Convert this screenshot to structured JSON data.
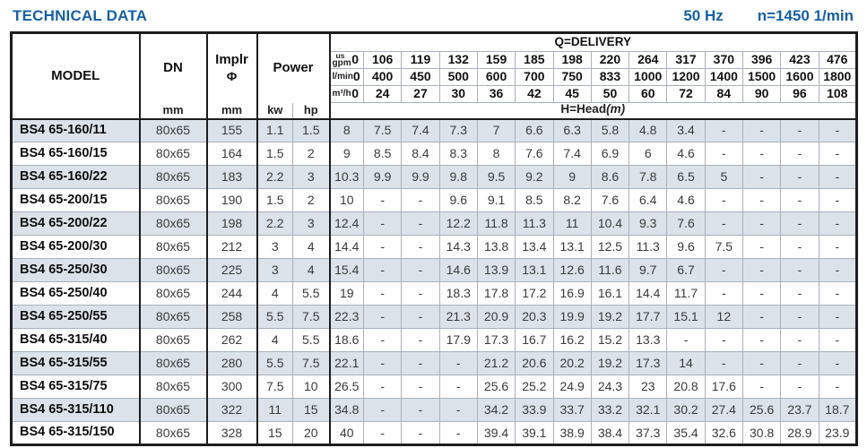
{
  "topbar": {
    "title": "TECHNICAL DATA",
    "frequency": "50 Hz",
    "speed": "n=1450 1/min"
  },
  "colors": {
    "accent_blue": "#1560a7",
    "row_shade": "#dbe2e9",
    "border_dark": "#1d1d1d",
    "border_light": "#a8b0ba"
  },
  "table": {
    "headers": {
      "model": "MODEL",
      "dn": "DN",
      "implr_line1": "Implr",
      "implr_line2": "Φ",
      "power": "Power",
      "mm_dn": "mm",
      "mm_implr": "mm",
      "kw": "kw",
      "hp": "hp",
      "delivery_title": "Q=DELIVERY",
      "head_title": "H=Head",
      "head_unit": "(m)",
      "unit_rows": [
        {
          "label_top": "us",
          "label": "gpm",
          "values": [
            "0",
            "106",
            "119",
            "132",
            "159",
            "185",
            "198",
            "220",
            "264",
            "317",
            "370",
            "396",
            "423",
            "476"
          ]
        },
        {
          "label": "l/min",
          "values": [
            "0",
            "400",
            "450",
            "500",
            "600",
            "700",
            "750",
            "833",
            "1000",
            "1200",
            "1400",
            "1500",
            "1600",
            "1800"
          ]
        },
        {
          "label": "m³/h",
          "values": [
            "0",
            "24",
            "27",
            "30",
            "36",
            "42",
            "45",
            "50",
            "60",
            "72",
            "84",
            "90",
            "96",
            "108"
          ]
        }
      ]
    },
    "rows": [
      {
        "model": "BS4 65-160/11",
        "dn": "80x65",
        "implr": "155",
        "kw": "1.1",
        "hp": "1.5",
        "heads": [
          "8",
          "7.5",
          "7.4",
          "7.3",
          "7",
          "6.6",
          "6.3",
          "5.8",
          "4.8",
          "3.4",
          "-",
          "-",
          "-",
          "-"
        ]
      },
      {
        "model": "BS4 65-160/15",
        "dn": "80x65",
        "implr": "164",
        "kw": "1.5",
        "hp": "2",
        "heads": [
          "9",
          "8.5",
          "8.4",
          "8.3",
          "8",
          "7.6",
          "7.4",
          "6.9",
          "6",
          "4.6",
          "-",
          "-",
          "-",
          "-"
        ]
      },
      {
        "model": "BS4 65-160/22",
        "dn": "80x65",
        "implr": "183",
        "kw": "2.2",
        "hp": "3",
        "heads": [
          "10.3",
          "9.9",
          "9.9",
          "9.8",
          "9.5",
          "9.2",
          "9",
          "8.6",
          "7.8",
          "6.5",
          "5",
          "-",
          "-",
          "-"
        ]
      },
      {
        "model": "BS4 65-200/15",
        "dn": "80x65",
        "implr": "190",
        "kw": "1.5",
        "hp": "2",
        "heads": [
          "10",
          "-",
          "-",
          "9.6",
          "9.1",
          "8.5",
          "8.2",
          "7.6",
          "6.4",
          "4.6",
          "-",
          "-",
          "-",
          "-"
        ]
      },
      {
        "model": "BS4 65-200/22",
        "dn": "80x65",
        "implr": "198",
        "kw": "2.2",
        "hp": "3",
        "heads": [
          "12.4",
          "-",
          "-",
          "12.2",
          "11.8",
          "11.3",
          "11",
          "10.4",
          "9.3",
          "7.6",
          "-",
          "-",
          "-",
          "-"
        ]
      },
      {
        "model": "BS4 65-200/30",
        "dn": "80x65",
        "implr": "212",
        "kw": "3",
        "hp": "4",
        "heads": [
          "14.4",
          "-",
          "-",
          "14.3",
          "13.8",
          "13.4",
          "13.1",
          "12.5",
          "11.3",
          "9.6",
          "7.5",
          "-",
          "-",
          "-"
        ]
      },
      {
        "model": "BS4 65-250/30",
        "dn": "80x65",
        "implr": "225",
        "kw": "3",
        "hp": "4",
        "heads": [
          "15.4",
          "-",
          "-",
          "14.6",
          "13.9",
          "13.1",
          "12.6",
          "11.6",
          "9.7",
          "6.7",
          "-",
          "-",
          "-",
          "-"
        ]
      },
      {
        "model": "BS4 65-250/40",
        "dn": "80x65",
        "implr": "244",
        "kw": "4",
        "hp": "5.5",
        "heads": [
          "19",
          "-",
          "-",
          "18.3",
          "17.8",
          "17.2",
          "16.9",
          "16.1",
          "14.4",
          "11.7",
          "-",
          "-",
          "-",
          "-"
        ]
      },
      {
        "model": "BS4 65-250/55",
        "dn": "80x65",
        "implr": "258",
        "kw": "5.5",
        "hp": "7.5",
        "heads": [
          "22.3",
          "-",
          "-",
          "21.3",
          "20.9",
          "20.3",
          "19.9",
          "19.2",
          "17.7",
          "15.1",
          "12",
          "-",
          "-",
          "-"
        ]
      },
      {
        "model": "BS4 65-315/40",
        "dn": "80x65",
        "implr": "262",
        "kw": "4",
        "hp": "5.5",
        "heads": [
          "18.6",
          "-",
          "-",
          "17.9",
          "17.3",
          "16.7",
          "16.2",
          "15.2",
          "13.3",
          "-",
          "-",
          "-",
          "-",
          "-"
        ]
      },
      {
        "model": "BS4 65-315/55",
        "dn": "80x65",
        "implr": "280",
        "kw": "5.5",
        "hp": "7.5",
        "heads": [
          "22.1",
          "-",
          "-",
          "-",
          "21.2",
          "20.6",
          "20.2",
          "19.2",
          "17.3",
          "14",
          "-",
          "-",
          "-",
          "-"
        ]
      },
      {
        "model": "BS4 65-315/75",
        "dn": "80x65",
        "implr": "300",
        "kw": "7.5",
        "hp": "10",
        "heads": [
          "26.5",
          "-",
          "-",
          "-",
          "25.6",
          "25.2",
          "24.9",
          "24.3",
          "23",
          "20.8",
          "17.6",
          "-",
          "-",
          "-"
        ]
      },
      {
        "model": "BS4 65-315/110",
        "dn": "80x65",
        "implr": "322",
        "kw": "11",
        "hp": "15",
        "heads": [
          "34.8",
          "-",
          "-",
          "-",
          "34.2",
          "33.9",
          "33.7",
          "33.2",
          "32.1",
          "30.2",
          "27.4",
          "25.6",
          "23.7",
          "18.7"
        ]
      },
      {
        "model": "BS4 65-315/150",
        "dn": "80x65",
        "implr": "328",
        "kw": "15",
        "hp": "20",
        "heads": [
          "40",
          "-",
          "-",
          "-",
          "39.4",
          "39.1",
          "38.9",
          "38.4",
          "37.3",
          "35.4",
          "32.6",
          "30.8",
          "28.9",
          "23.9"
        ]
      }
    ]
  }
}
